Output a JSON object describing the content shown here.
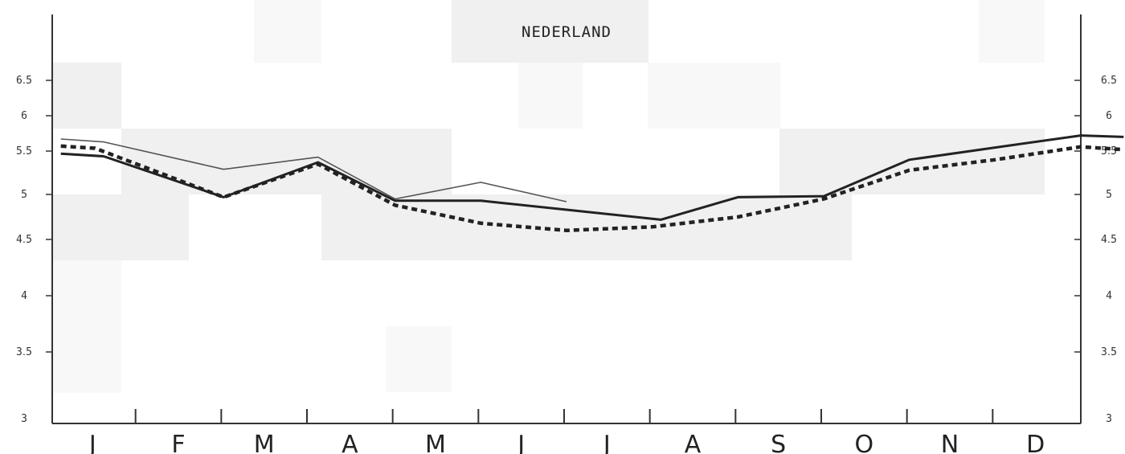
{
  "chart_data": {
    "type": "line",
    "title": "NEDERLAND",
    "categories": [
      "J",
      "F",
      "M",
      "A",
      "M",
      "J",
      "J",
      "A",
      "S",
      "O",
      "N",
      "D"
    ],
    "ylim": [
      3,
      7
    ],
    "yticks": [
      "3",
      "3.5",
      "4",
      "4.5",
      "5",
      "5.5",
      "6",
      "6.5"
    ],
    "grid": false,
    "background_colors": [
      "#f0f0f0",
      "#f8f8f8",
      "#ffffff"
    ],
    "series": [
      {
        "style": "solid-thick",
        "color": "#222222",
        "x": [
          0.1,
          0.6,
          2.0,
          3.1,
          4.0,
          5.0,
          6.0,
          7.1,
          8.0,
          9.0,
          10.0,
          11.0,
          12.0,
          12.5
        ],
        "values": [
          5.47,
          5.44,
          4.97,
          5.37,
          4.93,
          4.93,
          4.83,
          4.72,
          4.97,
          4.98,
          5.4,
          5.55,
          5.72,
          5.7
        ]
      },
      {
        "style": "solid-thin",
        "color": "#555555",
        "x": [
          0.1,
          0.6,
          2.0,
          3.1,
          4.0,
          5.0,
          6.0
        ],
        "values": [
          5.67,
          5.63,
          5.29,
          5.43,
          4.95,
          5.14,
          4.92
        ]
      },
      {
        "style": "dashed-thick",
        "color": "#222222",
        "x": [
          0.1,
          0.5,
          2.0,
          3.1,
          4.0,
          5.0,
          6.0,
          7.0,
          8.0,
          9.0,
          10.0,
          11.0,
          12.0,
          12.5
        ],
        "values": [
          5.57,
          5.54,
          4.97,
          5.35,
          4.88,
          4.68,
          4.6,
          4.64,
          4.75,
          4.95,
          5.28,
          5.4,
          5.56,
          5.52
        ]
      }
    ]
  }
}
